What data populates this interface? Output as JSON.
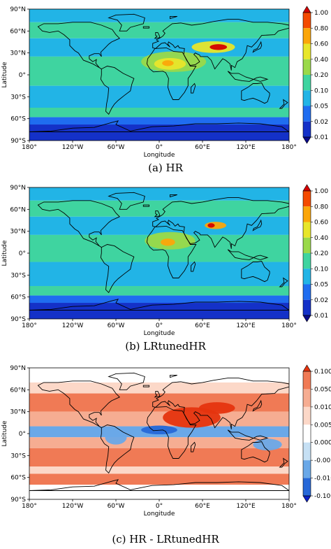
{
  "panels": [
    {
      "caption": "(a) HR",
      "xlabel": "Longitude",
      "ylabel": "Latitude",
      "xticks": [
        "180°",
        "120°W",
        "60°W",
        "0°",
        "60°E",
        "120°E",
        "180°"
      ],
      "yticks": [
        "90°N",
        "60°N",
        "30°N",
        "0°",
        "30°S",
        "60°S",
        "90°S"
      ],
      "colorbar": {
        "labels": [
          "1.00",
          "0.80",
          "0.60",
          "0.40",
          "0.20",
          "0.10",
          "0.05",
          "0.02",
          "0.01"
        ],
        "colors": [
          "#d40000",
          "#f44a00",
          "#fba60a",
          "#e8e62a",
          "#9ad94a",
          "#3fd4a0",
          "#22b4e6",
          "#1f6df0",
          "#1431c8",
          "#0a0a8a"
        ]
      },
      "field": {
        "ocean_bands": [
          {
            "lat": [
              90,
              72
            ],
            "color": "#22b4e6"
          },
          {
            "lat": [
              72,
              50
            ],
            "color": "#3fd4a0"
          },
          {
            "lat": [
              50,
              25
            ],
            "color": "#22b4e6"
          },
          {
            "lat": [
              25,
              -15
            ],
            "color": "#3fd4a0"
          },
          {
            "lat": [
              -15,
              -45
            ],
            "color": "#22b4e6"
          },
          {
            "lat": [
              -45,
              -58
            ],
            "color": "#3fd4a0"
          },
          {
            "lat": [
              -58,
              -68
            ],
            "color": "#1f6df0"
          },
          {
            "lat": [
              -68,
              -90
            ],
            "color": "#1431c8"
          }
        ],
        "hotspots": [
          {
            "lon": 20,
            "lat": 18,
            "rx": 45,
            "ry": 14,
            "color": "#9ad94a"
          },
          {
            "lon": 15,
            "lat": 15,
            "rx": 22,
            "ry": 8,
            "color": "#e8e62a"
          },
          {
            "lon": 12,
            "lat": 16,
            "rx": 8,
            "ry": 4,
            "color": "#fba60a"
          },
          {
            "lon": 75,
            "lat": 38,
            "rx": 30,
            "ry": 8,
            "color": "#e8e62a"
          },
          {
            "lon": 82,
            "lat": 38,
            "rx": 12,
            "ry": 4,
            "color": "#d40000"
          }
        ]
      }
    },
    {
      "caption": "(b) LRtunedHR",
      "xlabel": "Longitude",
      "ylabel": "Latitude",
      "xticks": [
        "180°",
        "120°W",
        "60°W",
        "0°",
        "60°E",
        "120°E",
        "180°"
      ],
      "yticks": [
        "90°N",
        "60°N",
        "30°N",
        "0°",
        "30°S",
        "60°S",
        "90°S"
      ],
      "colorbar": {
        "labels": [
          "1.00",
          "0.80",
          "0.60",
          "0.40",
          "0.20",
          "0.10",
          "0.05",
          "0.02",
          "0.01"
        ],
        "colors": [
          "#d40000",
          "#f44a00",
          "#fba60a",
          "#e8e62a",
          "#9ad94a",
          "#3fd4a0",
          "#22b4e6",
          "#1f6df0",
          "#1431c8",
          "#0a0a8a"
        ]
      },
      "field": {
        "ocean_bands": [
          {
            "lat": [
              90,
              72
            ],
            "color": "#22b4e6"
          },
          {
            "lat": [
              72,
              50
            ],
            "color": "#3fd4a0"
          },
          {
            "lat": [
              50,
              25
            ],
            "color": "#22b4e6"
          },
          {
            "lat": [
              25,
              -12
            ],
            "color": "#3fd4a0"
          },
          {
            "lat": [
              -12,
              -45
            ],
            "color": "#22b4e6"
          },
          {
            "lat": [
              -45,
              -58
            ],
            "color": "#3fd4a0"
          },
          {
            "lat": [
              -58,
              -68
            ],
            "color": "#1f6df0"
          },
          {
            "lat": [
              -68,
              -90
            ],
            "color": "#1431c8"
          }
        ],
        "hotspots": [
          {
            "lon": 15,
            "lat": 17,
            "rx": 35,
            "ry": 12,
            "color": "#9ad94a"
          },
          {
            "lon": 12,
            "lat": 15,
            "rx": 10,
            "ry": 5,
            "color": "#fba60a"
          },
          {
            "lon": 78,
            "lat": 38,
            "rx": 15,
            "ry": 5,
            "color": "#fba60a"
          },
          {
            "lon": 72,
            "lat": 38,
            "rx": 5,
            "ry": 3,
            "color": "#d40000"
          }
        ]
      }
    },
    {
      "caption": "(c) HR - LRtunedHR",
      "xlabel": "Longitude",
      "ylabel": "Latitude",
      "xticks": [
        "180°",
        "120°W",
        "60°W",
        "0°",
        "60°E",
        "120°E",
        "180°"
      ],
      "yticks": [
        "90°N",
        "60°N",
        "30°N",
        "0°",
        "30°S",
        "60°S",
        "90°S"
      ],
      "colorbar": {
        "labels": [
          "0.100",
          "0.050",
          "0.010",
          "0.005",
          "0.000",
          "-0.005",
          "-0.010",
          "-0.100"
        ],
        "colors": [
          "#e5340f",
          "#f07a55",
          "#f6ad92",
          "#fcd8c8",
          "#ffffff",
          "#c6e0f4",
          "#6aa8e8",
          "#2768d8",
          "#0b20c8"
        ]
      },
      "field": {
        "ocean_bands": [
          {
            "lat": [
              90,
              70
            ],
            "color": "#ffffff"
          },
          {
            "lat": [
              70,
              55
            ],
            "color": "#fcd8c8"
          },
          {
            "lat": [
              55,
              30
            ],
            "color": "#f07a55"
          },
          {
            "lat": [
              30,
              10
            ],
            "color": "#f6ad92"
          },
          {
            "lat": [
              10,
              -5
            ],
            "color": "#6aa8e8"
          },
          {
            "lat": [
              -5,
              -20
            ],
            "color": "#f6ad92"
          },
          {
            "lat": [
              -20,
              -45
            ],
            "color": "#f07a55"
          },
          {
            "lat": [
              -45,
              -55
            ],
            "color": "#fcd8c8"
          },
          {
            "lat": [
              -55,
              -70
            ],
            "color": "#f07a55"
          },
          {
            "lat": [
              -70,
              -90
            ],
            "color": "#ffffff"
          }
        ],
        "hotspots": [
          {
            "lon": 45,
            "lat": 22,
            "rx": 40,
            "ry": 14,
            "color": "#e5340f"
          },
          {
            "lon": 80,
            "lat": 35,
            "rx": 25,
            "ry": 8,
            "color": "#e5340f"
          },
          {
            "lon": 0,
            "lat": 5,
            "rx": 25,
            "ry": 6,
            "color": "#2768d8"
          },
          {
            "lon": -60,
            "lat": -5,
            "rx": 15,
            "ry": 10,
            "color": "#6aa8e8"
          },
          {
            "lon": 150,
            "lat": -15,
            "rx": 20,
            "ry": 8,
            "color": "#6aa8e8"
          }
        ]
      }
    }
  ]
}
